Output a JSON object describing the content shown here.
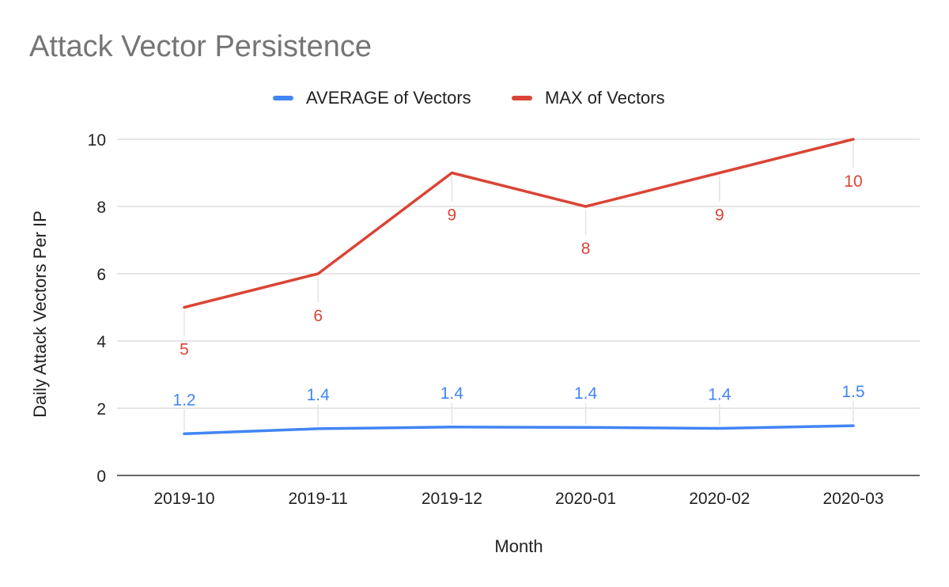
{
  "chart_data": {
    "type": "line",
    "title": "Attack Vector Persistence",
    "xlabel": "Month",
    "ylabel": "Daily Attack Vectors Per IP",
    "categories": [
      "2019-10",
      "2019-11",
      "2019-12",
      "2020-01",
      "2020-02",
      "2020-03"
    ],
    "ylim": [
      0,
      10
    ],
    "yticks": [
      0,
      2,
      4,
      6,
      8,
      10
    ],
    "grid": true,
    "legend_position": "top",
    "series": [
      {
        "name": "AVERAGE of Vectors",
        "color": "#4285f4",
        "values": [
          1.24,
          1.39,
          1.44,
          1.43,
          1.4,
          1.48
        ],
        "data_labels": [
          "1.2",
          "1.4",
          "1.4",
          "1.4",
          "1.4",
          "1.5"
        ],
        "label_position": "above"
      },
      {
        "name": "MAX of Vectors",
        "color": "#db4437",
        "values": [
          5,
          6,
          9,
          8,
          9,
          10
        ],
        "data_labels": [
          "5",
          "6",
          "9",
          "8",
          "9",
          "10"
        ],
        "label_position": "below"
      }
    ]
  }
}
